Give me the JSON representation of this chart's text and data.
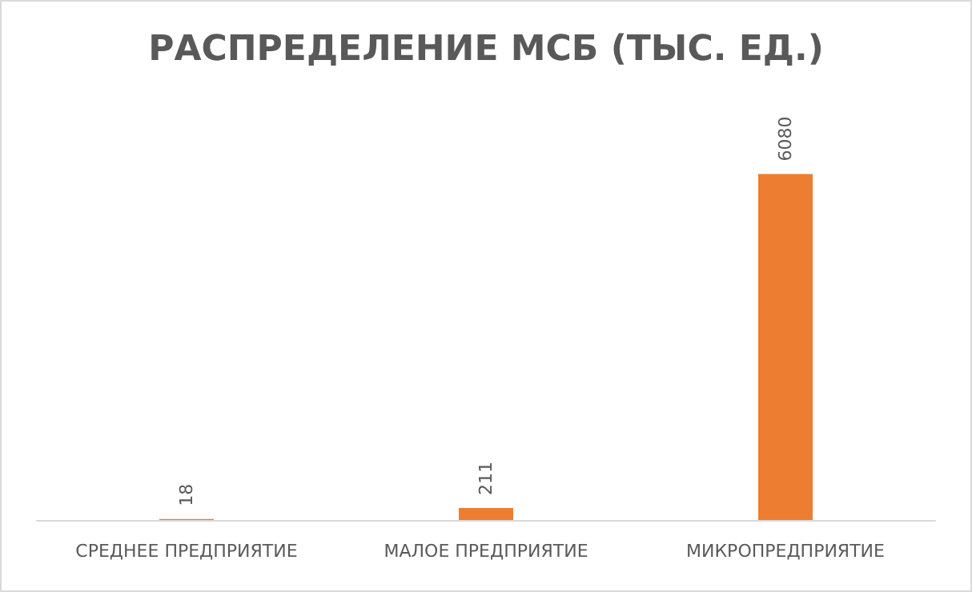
{
  "chart_data": {
    "type": "bar",
    "title": "РАСПРЕДЕЛЕНИЕ МСБ (ТЫС. ЕД.)",
    "categories": [
      "СРЕДНЕЕ ПРЕДПРИЯТИЕ",
      "МАЛОЕ ПРЕДПРИЯТИЕ",
      "МИКРОПРЕДПРИЯТИЕ"
    ],
    "values": [
      18,
      211,
      6080
    ],
    "color": "#ed7d31",
    "data_labels": true
  }
}
